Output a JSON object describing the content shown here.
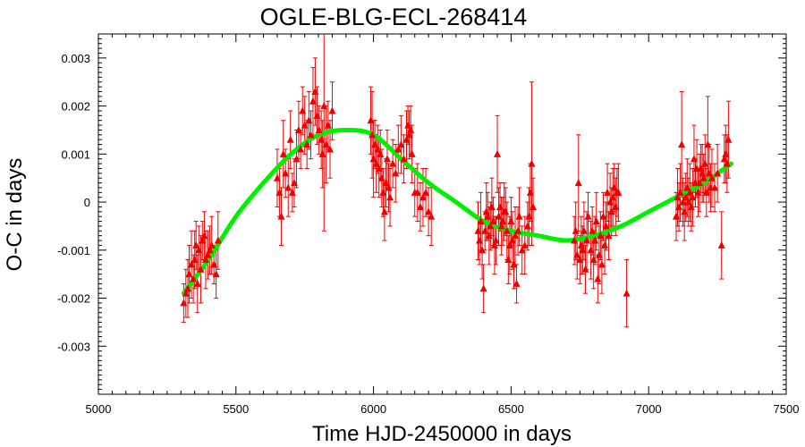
{
  "chart_data": {
    "type": "scatter",
    "title": "OGLE-BLG-ECL-268414",
    "xlabel": "Time HJD-2450000 in days",
    "ylabel": "O-C in days",
    "xlim": [
      5000,
      7500
    ],
    "ylim": [
      -0.004,
      0.0035
    ],
    "x_ticks": [
      5000,
      5500,
      6000,
      6500,
      7000,
      7500
    ],
    "y_ticks": [
      -0.003,
      -0.002,
      -0.001,
      0,
      0.001,
      0.002,
      0.003
    ],
    "y_tick_labels": [
      "-0.003",
      "-0.002",
      "-0.001",
      "0",
      "0.001",
      "0.002",
      "0.003"
    ],
    "grid": false,
    "colors": {
      "points": "#ee0000",
      "fit": "#00ee00",
      "frame": "#000000"
    },
    "series": [
      {
        "kind": "points-with-errorbars",
        "points": [
          [
            5310,
            -0.0021,
            0.0004
          ],
          [
            5318,
            -0.0019,
            0.0005
          ],
          [
            5325,
            -0.0018,
            0.0006
          ],
          [
            5330,
            -0.0015,
            0.0006
          ],
          [
            5338,
            -0.0013,
            0.0007
          ],
          [
            5345,
            -0.0016,
            0.0005
          ],
          [
            5350,
            -0.0012,
            0.0006
          ],
          [
            5355,
            -0.0009,
            0.0005
          ],
          [
            5360,
            -0.0017,
            0.0006
          ],
          [
            5365,
            -0.001,
            0.0005
          ],
          [
            5372,
            -0.0014,
            0.0007
          ],
          [
            5378,
            -0.0008,
            0.0004
          ],
          [
            5385,
            -0.0007,
            0.0005
          ],
          [
            5390,
            -0.0012,
            0.0006
          ],
          [
            5398,
            -0.0011,
            0.0005
          ],
          [
            5405,
            -0.001,
            0.0005
          ],
          [
            5412,
            -0.0009,
            0.0006
          ],
          [
            5420,
            -0.0013,
            0.0004
          ],
          [
            5428,
            -0.0015,
            0.0005
          ],
          [
            5435,
            -0.0008,
            0.0006
          ],
          [
            5650,
            0.0005,
            0.0006
          ],
          [
            5658,
            0.0002,
            0.0005
          ],
          [
            5665,
            -0.0003,
            0.0006
          ],
          [
            5672,
            0.001,
            0.0007
          ],
          [
            5680,
            0.0006,
            0.0005
          ],
          [
            5690,
            0.0003,
            0.0006
          ],
          [
            5698,
            0.0013,
            0.0006
          ],
          [
            5705,
            0.0002,
            0.0004
          ],
          [
            5712,
            0.0004,
            0.0005
          ],
          [
            5720,
            0.0009,
            0.0006
          ],
          [
            5728,
            0.0015,
            0.0006
          ],
          [
            5735,
            0.0011,
            0.0004
          ],
          [
            5742,
            0.0019,
            0.0005
          ],
          [
            5750,
            0.0016,
            0.0006
          ],
          [
            5758,
            0.0012,
            0.0005
          ],
          [
            5765,
            0.0017,
            0.0006
          ],
          [
            5772,
            0.0014,
            0.0005
          ],
          [
            5780,
            0.0021,
            0.0007
          ],
          [
            5788,
            0.0023,
            0.0007
          ],
          [
            5795,
            0.0018,
            0.0006
          ],
          [
            5802,
            0.0015,
            0.0005
          ],
          [
            5810,
            0.0013,
            0.0006
          ],
          [
            5815,
            0.001,
            0.0007
          ],
          [
            5820,
            0.002,
            0.0026
          ],
          [
            5828,
            0.0012,
            0.0008
          ],
          [
            5835,
            0.0016,
            0.0005
          ],
          [
            5842,
            0.0011,
            0.0006
          ],
          [
            5850,
            0.0019,
            0.0006
          ],
          [
            5990,
            0.0017,
            0.0007
          ],
          [
            5995,
            0.0014,
            0.0009
          ],
          [
            6000,
            0.0009,
            0.0008
          ],
          [
            6005,
            0.0012,
            0.0005
          ],
          [
            6010,
            0.0008,
            0.0006
          ],
          [
            6015,
            0.0011,
            0.0005
          ],
          [
            6020,
            0.0007,
            0.0006
          ],
          [
            6025,
            0.001,
            0.0005
          ],
          [
            6030,
            0.0005,
            0.0006
          ],
          [
            6035,
            0.0002,
            0.0005
          ],
          [
            6040,
            -0.0002,
            0.0006
          ],
          [
            6045,
            0.0004,
            0.0005
          ],
          [
            6050,
            0.0009,
            0.0006
          ],
          [
            6055,
            0.0003,
            0.0005
          ],
          [
            6060,
            0.0001,
            0.0006
          ],
          [
            6070,
            0.0008,
            0.0005
          ],
          [
            6080,
            0.0006,
            0.0006
          ],
          [
            6090,
            0.0011,
            0.0005
          ],
          [
            6100,
            0.0012,
            0.0006
          ],
          [
            6110,
            0.0009,
            0.0005
          ],
          [
            6120,
            0.0013,
            0.0006
          ],
          [
            6125,
            0.0016,
            0.0004
          ],
          [
            6130,
            0.0014,
            0.0005
          ],
          [
            6135,
            0.0015,
            0.0005
          ],
          [
            6140,
            0.001,
            0.0006
          ],
          [
            6150,
            0.0002,
            0.0005
          ],
          [
            6160,
            0.0002,
            0.0006
          ],
          [
            6170,
            -0.0001,
            0.0005
          ],
          [
            6180,
            0.0001,
            0.0006
          ],
          [
            6190,
            0.0002,
            0.0005
          ],
          [
            6200,
            -0.0002,
            0.0005
          ],
          [
            6210,
            -0.0003,
            0.0006
          ],
          [
            6380,
            -0.0006,
            0.0006
          ],
          [
            6385,
            -0.0008,
            0.0005
          ],
          [
            6390,
            -0.0004,
            0.0006
          ],
          [
            6395,
            -0.001,
            0.0006
          ],
          [
            6400,
            -0.0018,
            0.0005
          ],
          [
            6405,
            -0.0006,
            0.0004
          ],
          [
            6410,
            -0.0002,
            0.0006
          ],
          [
            6415,
            -0.0003,
            0.0005
          ],
          [
            6420,
            -0.0007,
            0.0006
          ],
          [
            6425,
            -0.0005,
            0.0005
          ],
          [
            6430,
            -0.0001,
            0.0006
          ],
          [
            6435,
            -0.0004,
            0.0005
          ],
          [
            6440,
            -0.0009,
            0.0006
          ],
          [
            6445,
            -0.0008,
            0.0005
          ],
          [
            6450,
            0.001,
            0.0008
          ],
          [
            6455,
            -0.0003,
            0.0006
          ],
          [
            6460,
            -0.0001,
            0.0005
          ],
          [
            6465,
            -0.0005,
            0.0006
          ],
          [
            6470,
            -0.0004,
            0.0005
          ],
          [
            6475,
            -0.0002,
            0.0006
          ],
          [
            6480,
            -0.0002,
            0.0005
          ],
          [
            6485,
            -0.0006,
            0.0006
          ],
          [
            6490,
            -0.0012,
            0.0005
          ],
          [
            6495,
            -0.0009,
            0.0006
          ],
          [
            6500,
            -0.0004,
            0.0005
          ],
          [
            6505,
            -0.0008,
            0.0006
          ],
          [
            6510,
            -0.0013,
            0.0005
          ],
          [
            6515,
            -0.0007,
            0.0006
          ],
          [
            6520,
            -0.0017,
            0.0004
          ],
          [
            6525,
            -0.0006,
            0.0005
          ],
          [
            6530,
            -0.0003,
            0.0006
          ],
          [
            6540,
            -0.001,
            0.0005
          ],
          [
            6550,
            -0.0009,
            0.0006
          ],
          [
            6560,
            -0.0005,
            0.0005
          ],
          [
            6565,
            -0.0003,
            0.0006
          ],
          [
            6570,
            0.0002,
            0.0006
          ],
          [
            6575,
            0.0008,
            0.0017
          ],
          [
            6580,
            -0.0001,
            0.0006
          ],
          [
            6730,
            -0.0008,
            0.0005
          ],
          [
            6735,
            -0.0006,
            0.0006
          ],
          [
            6740,
            -0.0011,
            0.0005
          ],
          [
            6745,
            0.0004,
            0.001
          ],
          [
            6750,
            -0.0012,
            0.0005
          ],
          [
            6755,
            -0.0009,
            0.0006
          ],
          [
            6760,
            -0.001,
            0.0005
          ],
          [
            6765,
            -0.0006,
            0.0006
          ],
          [
            6770,
            -0.0014,
            0.0005
          ],
          [
            6775,
            -0.0008,
            0.0006
          ],
          [
            6780,
            -0.0003,
            0.0005
          ],
          [
            6790,
            -0.001,
            0.0006
          ],
          [
            6795,
            -0.0006,
            0.0005
          ],
          [
            6800,
            -0.0012,
            0.0006
          ],
          [
            6805,
            -0.0008,
            0.0005
          ],
          [
            6810,
            -0.0004,
            0.0006
          ],
          [
            6815,
            -0.0016,
            0.0005
          ],
          [
            6820,
            -0.0011,
            0.0006
          ],
          [
            6825,
            -0.0007,
            0.0005
          ],
          [
            6830,
            -0.0013,
            0.0006
          ],
          [
            6835,
            -0.0003,
            0.0005
          ],
          [
            6840,
            -0.0009,
            0.0006
          ],
          [
            6845,
            -0.0005,
            0.0005
          ],
          [
            6850,
            0.0002,
            0.0006
          ],
          [
            6855,
            -0.0007,
            0.0005
          ],
          [
            6860,
            0.0,
            0.0006
          ],
          [
            6865,
            -0.0002,
            0.0005
          ],
          [
            6870,
            0.0001,
            0.0006
          ],
          [
            6875,
            0.0003,
            0.0005
          ],
          [
            6880,
            -0.0001,
            0.0006
          ],
          [
            6885,
            0.0002,
            0.0005
          ],
          [
            6890,
            0.0002,
            0.0006
          ],
          [
            6920,
            -0.0019,
            0.0007
          ],
          [
            7100,
            -0.0003,
            0.0005
          ],
          [
            7105,
            0.0001,
            0.0006
          ],
          [
            7110,
            -0.0001,
            0.0005
          ],
          [
            7115,
            0.0002,
            0.0006
          ],
          [
            7120,
            0.0012,
            0.0011
          ],
          [
            7125,
            0.0,
            0.0005
          ],
          [
            7130,
            -0.0002,
            0.0006
          ],
          [
            7135,
            0.0001,
            0.0005
          ],
          [
            7140,
            0.0003,
            0.0006
          ],
          [
            7145,
            0.0,
            0.0005
          ],
          [
            7150,
            0.0002,
            0.0006
          ],
          [
            7155,
            -0.0001,
            0.0005
          ],
          [
            7160,
            0.0001,
            0.0006
          ],
          [
            7165,
            0.0009,
            0.0007
          ],
          [
            7170,
            0.0004,
            0.0005
          ],
          [
            7175,
            0.0007,
            0.0006
          ],
          [
            7180,
            0.0002,
            0.0005
          ],
          [
            7185,
            0.0004,
            0.0006
          ],
          [
            7190,
            0.0007,
            0.0005
          ],
          [
            7195,
            0.0006,
            0.0006
          ],
          [
            7200,
            0.0005,
            0.0005
          ],
          [
            7205,
            0.0008,
            0.0006
          ],
          [
            7210,
            0.0002,
            0.0005
          ],
          [
            7215,
            0.0012,
            0.001
          ],
          [
            7220,
            0.0006,
            0.0006
          ],
          [
            7225,
            0.0003,
            0.0005
          ],
          [
            7230,
            0.0005,
            0.0006
          ],
          [
            7240,
            0.0003,
            0.0005
          ],
          [
            7250,
            0.0006,
            0.0006
          ],
          [
            7265,
            -0.0009,
            0.0007
          ],
          [
            7275,
            0.0009,
            0.0005
          ],
          [
            7280,
            0.001,
            0.0006
          ],
          [
            7285,
            0.0008,
            0.0006
          ],
          [
            7290,
            0.0013,
            0.0008
          ]
        ]
      },
      {
        "kind": "fit-curve",
        "x": [
          5310,
          5400,
          5500,
          5600,
          5700,
          5800,
          5900,
          6000,
          6100,
          6200,
          6300,
          6400,
          6500,
          6600,
          6700,
          6800,
          6900,
          7000,
          7100,
          7200,
          7300
        ],
        "y": [
          -0.0019,
          -0.0012,
          -0.0003,
          0.0004,
          0.001,
          0.0014,
          0.0015,
          0.0014,
          0.0009,
          0.0004,
          0.0,
          -0.0004,
          -0.0006,
          -0.0007,
          -0.0008,
          -0.0007,
          -0.0005,
          -0.0002,
          0.0001,
          0.0004,
          0.0008
        ]
      }
    ]
  }
}
